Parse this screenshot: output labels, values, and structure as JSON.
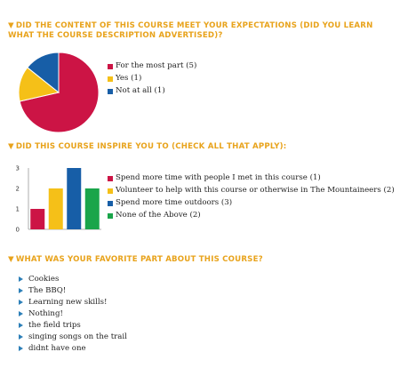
{
  "questions": [
    {
      "title": "DID THE CONTENT OF THIS COURSE MEET YOUR EXPECTATIONS (DID YOU LEARN WHAT THE COURSE DESCRIPTION ADVERTISED)?"
    },
    {
      "title": "DID THIS COURSE INSPIRE YOU TO (CHECK ALL THAT APPLY):"
    },
    {
      "title": "WHAT WAS YOUR FAVORITE PART ABOUT THIS COURSE?"
    }
  ],
  "chart_data": [
    {
      "type": "pie",
      "categories": [
        "For the most part (5)",
        "Yes (1)",
        "Not at all (1)"
      ],
      "values": [
        5,
        1,
        1
      ],
      "colors": [
        "#cc1445",
        "#f5c018",
        "#175ea7"
      ],
      "legend_position": "right"
    },
    {
      "type": "bar",
      "categories": [
        "Spend more time with people I met in this course (1)",
        "Volunteer to help with this course or otherwise in The Mountaineers (2)",
        "Spend more time outdoors (3)",
        "None of the Above (2)"
      ],
      "values": [
        1,
        2,
        3,
        2
      ],
      "colors": [
        "#cc1445",
        "#f5c018",
        "#175ea7",
        "#1aa54a"
      ],
      "yticks": [
        "0",
        "1",
        "2",
        "3"
      ],
      "ylim": [
        0,
        3
      ],
      "grid": false,
      "legend_position": "right"
    }
  ],
  "favorite_answers": [
    "Cookies",
    "The BBQ!",
    "Learning new skills!",
    "Nothing!",
    "the field trips",
    "singing songs on the trail",
    "didnt have one"
  ],
  "icons": {
    "section_marker": "triangle-down-icon",
    "list_marker": "triangle-right-icon"
  }
}
